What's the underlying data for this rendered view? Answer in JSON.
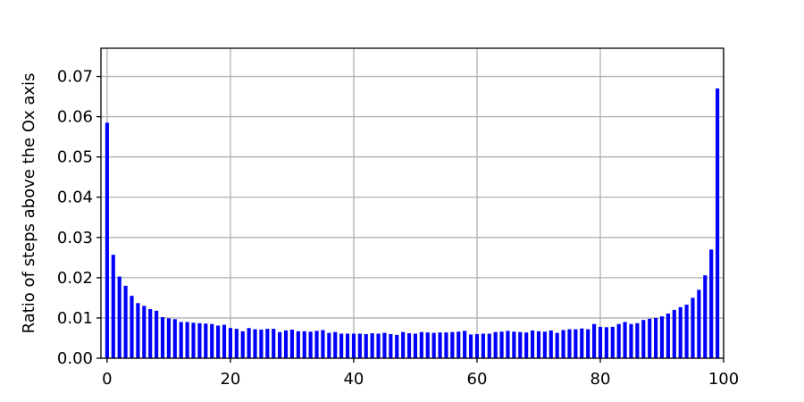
{
  "chart_data": {
    "type": "bar",
    "title": "",
    "xlabel": "",
    "ylabel": "Ratio of steps above the Ox axis",
    "xlim": [
      -1,
      100
    ],
    "ylim": [
      0,
      0.077
    ],
    "xticks": [
      0,
      20,
      40,
      60,
      80,
      100
    ],
    "yticks": [
      0.0,
      0.01,
      0.02,
      0.03,
      0.04,
      0.05,
      0.06,
      0.07
    ],
    "ytick_labels": [
      "0.00",
      "0.01",
      "0.02",
      "0.03",
      "0.04",
      "0.05",
      "0.06",
      "0.07"
    ],
    "xtick_labels": [
      "0",
      "20",
      "40",
      "60",
      "80",
      "100"
    ],
    "grid": true,
    "bar_color": "#0000ff",
    "x": [
      0,
      1,
      2,
      3,
      4,
      5,
      6,
      7,
      8,
      9,
      10,
      11,
      12,
      13,
      14,
      15,
      16,
      17,
      18,
      19,
      20,
      21,
      22,
      23,
      24,
      25,
      26,
      27,
      28,
      29,
      30,
      31,
      32,
      33,
      34,
      35,
      36,
      37,
      38,
      39,
      40,
      41,
      42,
      43,
      44,
      45,
      46,
      47,
      48,
      49,
      50,
      51,
      52,
      53,
      54,
      55,
      56,
      57,
      58,
      59,
      60,
      61,
      62,
      63,
      64,
      65,
      66,
      67,
      68,
      69,
      70,
      71,
      72,
      73,
      74,
      75,
      76,
      77,
      78,
      79,
      80,
      81,
      82,
      83,
      84,
      85,
      86,
      87,
      88,
      89,
      90,
      91,
      92,
      93,
      94,
      95,
      96,
      97,
      98,
      99
    ],
    "values": [
      0.0585,
      0.0257,
      0.0203,
      0.018,
      0.0155,
      0.0137,
      0.013,
      0.0122,
      0.0118,
      0.0102,
      0.0099,
      0.0097,
      0.009,
      0.009,
      0.0088,
      0.0087,
      0.0086,
      0.0085,
      0.0081,
      0.0083,
      0.0075,
      0.0073,
      0.0067,
      0.0075,
      0.0072,
      0.0071,
      0.0073,
      0.0073,
      0.0065,
      0.0069,
      0.0071,
      0.0067,
      0.0067,
      0.0066,
      0.0068,
      0.007,
      0.0063,
      0.0065,
      0.0061,
      0.0061,
      0.0061,
      0.0061,
      0.006,
      0.0062,
      0.0061,
      0.0063,
      0.006,
      0.0058,
      0.0065,
      0.0062,
      0.0061,
      0.0065,
      0.0064,
      0.0063,
      0.0064,
      0.0064,
      0.0065,
      0.0066,
      0.0068,
      0.0059,
      0.006,
      0.0061,
      0.0061,
      0.0065,
      0.0066,
      0.0068,
      0.0066,
      0.0065,
      0.0064,
      0.0069,
      0.0067,
      0.0066,
      0.0069,
      0.0063,
      0.007,
      0.0072,
      0.0072,
      0.0074,
      0.0072,
      0.0085,
      0.0078,
      0.0077,
      0.0078,
      0.0085,
      0.009,
      0.0085,
      0.0087,
      0.0095,
      0.0098,
      0.01,
      0.0104,
      0.0111,
      0.012,
      0.0127,
      0.0133,
      0.015,
      0.017,
      0.0206,
      0.027,
      0.067
    ]
  }
}
